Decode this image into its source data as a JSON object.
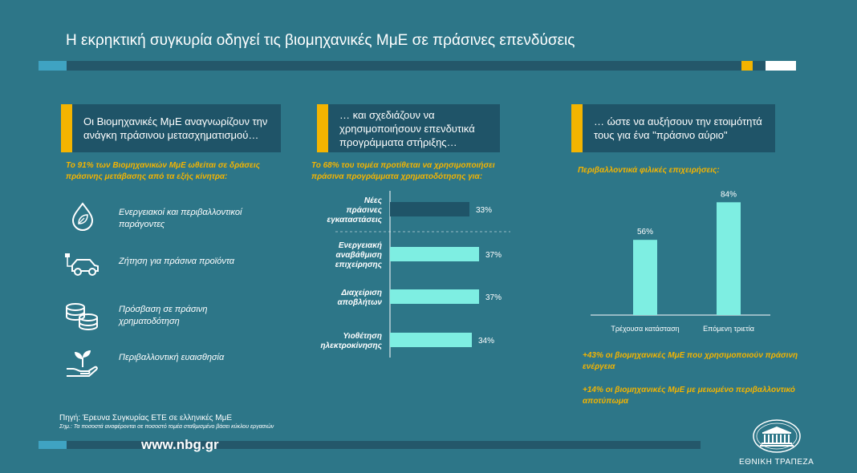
{
  "title": "Η εκρηκτική συγκυρία οδηγεί τις βιομηχανικές ΜμΕ σε πράσινες επενδύσεις",
  "colors": {
    "background": "#2d7688",
    "dark_panel": "#1f5468",
    "accent_yellow": "#f4b400",
    "bar_light": "#7eeee2",
    "bar_dark": "#1f5468"
  },
  "column1": {
    "header": "Οι Βιομηχανικές ΜμΕ αναγνωρίζουν την ανάγκη πράσινου μετασχηματισμού…",
    "subtitle": "Το 91% των Βιομηχανικών ΜμΕ ωθείται σε δράσεις πράσινης μετάβασης από τα εξής κίνητρα:",
    "items": [
      {
        "icon": "leaf-drop-icon",
        "label": "Ενεργειακοί και περιβαλλοντικοί παράγοντες"
      },
      {
        "icon": "electric-car-icon",
        "label": "Ζήτηση για πράσινα προϊόντα"
      },
      {
        "icon": "coins-stack-icon",
        "label": "Πρόσβαση σε πράσινη χρηματοδότηση"
      },
      {
        "icon": "hand-plant-icon",
        "label": "Περιβαλλοντική ευαισθησία"
      }
    ]
  },
  "column2": {
    "header": "… και σχεδιάζουν να χρησιμοποιήσουν επενδυτικά προγράμματα στήριξης…",
    "subtitle": "Το 68% του τομέα προτίθεται να χρησιμοποιήσει πράσινα προγράμματα χρηματοδότησης για:"
  },
  "column3": {
    "header": "… ώστε να αυξήσουν την ετοιμότητά τους για ένα \"πράσινο αύριο\"",
    "subtitle": "Περιβαλλοντικά φιλικές επιχειρήσεις:",
    "notes": [
      "+43% οι βιομηχανικές ΜμΕ που χρησιμοποιούν πράσινη ενέργεια",
      "+14% οι βιομηχανικές ΜμΕ με μειωμένο περιβαλλοντικό αποτύπωμα"
    ]
  },
  "chart_data": [
    {
      "type": "bar",
      "orientation": "horizontal",
      "categories": [
        "Νέες πράσινες εγκαταστάσεις",
        "Ενεργειακή αναβάθμιση επιχείρησης",
        "Διαχείριση αποβλήτων",
        "Υιοθέτηση ηλεκτροκίνησης"
      ],
      "values": [
        33,
        37,
        37,
        34
      ],
      "value_labels": [
        "33%",
        "37%",
        "37%",
        "34%"
      ],
      "unit": "%",
      "xlim": [
        0,
        40
      ]
    },
    {
      "type": "bar",
      "orientation": "vertical",
      "categories": [
        "Τρέχουσα κατάσταση",
        "Επόμενη τριετία"
      ],
      "values": [
        56,
        84
      ],
      "value_labels": [
        "56%",
        "84%"
      ],
      "unit": "%",
      "ylim": [
        0,
        100
      ]
    }
  ],
  "footer": {
    "source": "Πηγή: Έρευνα Συγκυρίας ΕΤΕ σε ελληνικές ΜμΕ",
    "note": "Σημ.: Τα ποσοστά αναφέρονται σε ποσοστό τομέα σταθμισμένο βάσει κύκλου εργασιών",
    "url": "www.nbg.gr",
    "bank_name": "ΕΘΝΙΚΗ ΤΡΑΠΕΖΑ"
  }
}
